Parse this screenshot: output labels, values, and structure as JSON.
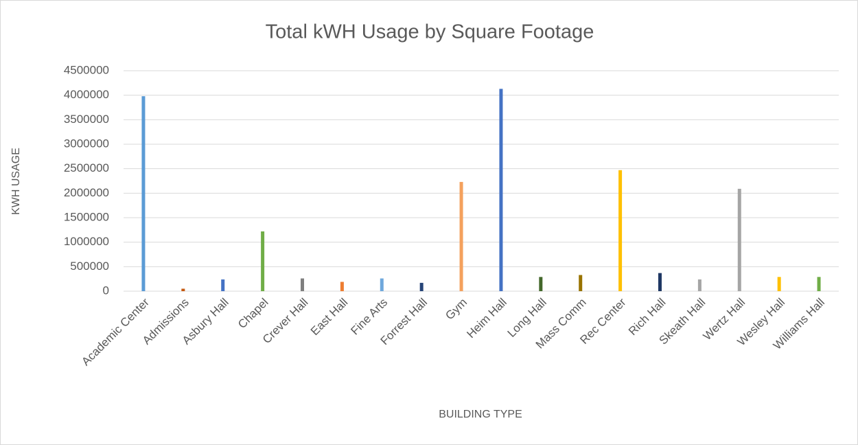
{
  "chart_data": {
    "type": "bar",
    "title": "Total kWH Usage by Square Footage",
    "x_label": "BUILDING TYPE",
    "y_label": "KWH USAGE",
    "categories": [
      "Academic Center",
      "Admissions",
      "Asbury Hall",
      "Chapel",
      "Crever Hall",
      "East Hall",
      "Fine Arts",
      "Forrest Hall",
      "Gym",
      "Heim Hall",
      "Long Hall",
      "Mass Comm",
      "Rec Center",
      "Rich Hall",
      "Skeath Hall",
      "Wertz Hall",
      "Wesley Hall",
      "Williams Hall"
    ],
    "values": [
      3980000,
      50000,
      240000,
      1220000,
      260000,
      190000,
      260000,
      170000,
      2230000,
      4130000,
      290000,
      330000,
      2470000,
      370000,
      240000,
      2090000,
      290000,
      290000
    ],
    "colors": [
      "#5B9BD5",
      "#C55A11",
      "#4472C4",
      "#70AD47",
      "#7F7F7F",
      "#ED7D31",
      "#6FA8DC",
      "#264478",
      "#F4A15D",
      "#4472C4",
      "#43682B",
      "#997300",
      "#FFC000",
      "#1F3864",
      "#A5A5A5",
      "#A5A5A5",
      "#FFC000",
      "#70AD47"
    ],
    "ylim": [
      0,
      4500000
    ],
    "yticks": [
      0,
      500000,
      1000000,
      1500000,
      2000000,
      2500000,
      3000000,
      3500000,
      4000000,
      4500000
    ],
    "grid": true
  }
}
